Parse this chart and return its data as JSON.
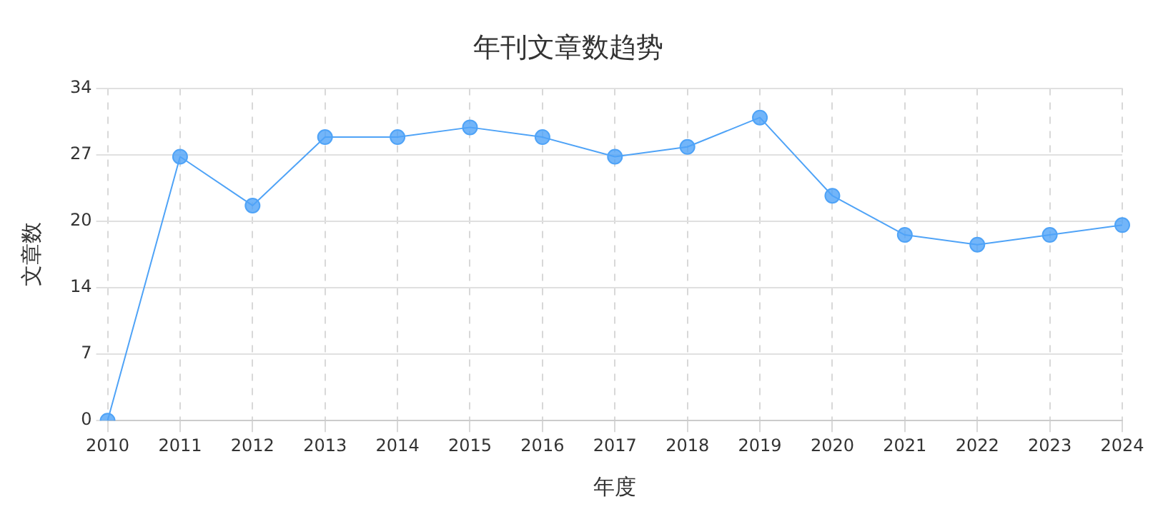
{
  "chart_data": {
    "type": "line",
    "title": "年刊文章数趋势",
    "xlabel": "年度",
    "ylabel": "文章数",
    "categories": [
      "2010",
      "2011",
      "2012",
      "2013",
      "2014",
      "2015",
      "2016",
      "2017",
      "2018",
      "2019",
      "2020",
      "2021",
      "2022",
      "2023",
      "2024"
    ],
    "series": [
      {
        "color": "#4fa3f7",
        "values": [
          0,
          27,
          22,
          29,
          29,
          30,
          29,
          27,
          28,
          31,
          23,
          19,
          18,
          19,
          20
        ]
      }
    ],
    "ylim": [
      0,
      34
    ],
    "yticks": [
      0,
      {
        "value": 6.8,
        "label": "7"
      },
      {
        "value": 13.6,
        "label": "14"
      },
      {
        "value": 20.4,
        "label": "20"
      },
      {
        "value": 27.2,
        "label": "27"
      },
      34
    ],
    "grid": true,
    "legend": false,
    "marker": "circle",
    "line_style": "solid"
  }
}
